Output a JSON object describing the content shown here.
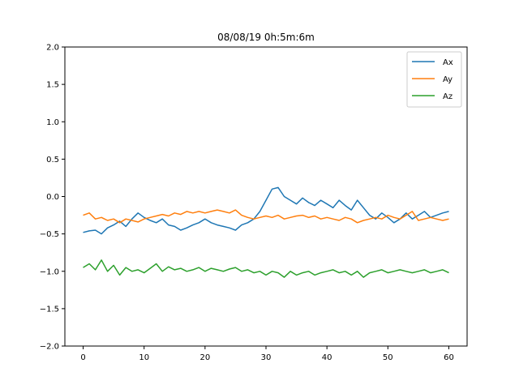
{
  "chart_data": {
    "type": "line",
    "title": "08/08/19 0h:5m:6m",
    "xlabel": "",
    "ylabel": "",
    "xlim": [
      -3,
      63
    ],
    "ylim": [
      -2.0,
      2.0
    ],
    "xticks": [
      "0",
      "10",
      "20",
      "30",
      "40",
      "50",
      "60"
    ],
    "xtick_values": [
      0,
      10,
      20,
      30,
      40,
      50,
      60
    ],
    "yticks": [
      "2.0",
      "1.5",
      "1.0",
      "0.5",
      "0.0",
      "−0.5",
      "−1.0",
      "−1.5",
      "−2.0"
    ],
    "ytick_values": [
      2.0,
      1.5,
      1.0,
      0.5,
      0.0,
      -0.5,
      -1.0,
      -1.5,
      -2.0
    ],
    "grid": false,
    "legend_position": "top-right",
    "series": [
      {
        "name": "Ax",
        "color": "#1f77b4",
        "x": [
          0,
          1,
          2,
          3,
          4,
          5,
          6,
          7,
          8,
          9,
          10,
          11,
          12,
          13,
          14,
          15,
          16,
          17,
          18,
          19,
          20,
          21,
          22,
          23,
          24,
          25,
          26,
          27,
          28,
          29,
          30,
          31,
          32,
          33,
          34,
          35,
          36,
          37,
          38,
          39,
          40,
          41,
          42,
          43,
          44,
          45,
          46,
          47,
          48,
          49,
          50,
          51,
          52,
          53,
          54,
          55,
          56,
          57,
          58,
          59,
          60
        ],
        "y": [
          -0.48,
          -0.46,
          -0.45,
          -0.5,
          -0.42,
          -0.38,
          -0.33,
          -0.4,
          -0.3,
          -0.22,
          -0.28,
          -0.32,
          -0.35,
          -0.3,
          -0.38,
          -0.4,
          -0.45,
          -0.42,
          -0.38,
          -0.35,
          -0.3,
          -0.35,
          -0.38,
          -0.4,
          -0.42,
          -0.45,
          -0.38,
          -0.35,
          -0.3,
          -0.2,
          -0.05,
          0.1,
          0.12,
          0.0,
          -0.05,
          -0.1,
          -0.02,
          -0.08,
          -0.12,
          -0.05,
          -0.1,
          -0.15,
          -0.05,
          -0.12,
          -0.18,
          -0.05,
          -0.15,
          -0.25,
          -0.3,
          -0.22,
          -0.28,
          -0.35,
          -0.3,
          -0.22,
          -0.3,
          -0.25,
          -0.2,
          -0.28,
          -0.25,
          -0.22,
          -0.2
        ]
      },
      {
        "name": "Ay",
        "color": "#ff7f0e",
        "x": [
          0,
          1,
          2,
          3,
          4,
          5,
          6,
          7,
          8,
          9,
          10,
          11,
          12,
          13,
          14,
          15,
          16,
          17,
          18,
          19,
          20,
          21,
          22,
          23,
          24,
          25,
          26,
          27,
          28,
          29,
          30,
          31,
          32,
          33,
          34,
          35,
          36,
          37,
          38,
          39,
          40,
          41,
          42,
          43,
          44,
          45,
          46,
          47,
          48,
          49,
          50,
          51,
          52,
          53,
          54,
          55,
          56,
          57,
          58,
          59,
          60
        ],
        "y": [
          -0.25,
          -0.22,
          -0.3,
          -0.28,
          -0.32,
          -0.3,
          -0.35,
          -0.3,
          -0.32,
          -0.34,
          -0.3,
          -0.28,
          -0.26,
          -0.24,
          -0.26,
          -0.22,
          -0.24,
          -0.2,
          -0.22,
          -0.2,
          -0.22,
          -0.2,
          -0.18,
          -0.2,
          -0.22,
          -0.18,
          -0.25,
          -0.28,
          -0.3,
          -0.28,
          -0.26,
          -0.28,
          -0.25,
          -0.3,
          -0.28,
          -0.26,
          -0.25,
          -0.28,
          -0.26,
          -0.3,
          -0.28,
          -0.3,
          -0.32,
          -0.28,
          -0.3,
          -0.35,
          -0.32,
          -0.3,
          -0.28,
          -0.3,
          -0.25,
          -0.28,
          -0.3,
          -0.25,
          -0.2,
          -0.32,
          -0.3,
          -0.28,
          -0.3,
          -0.32,
          -0.3
        ]
      },
      {
        "name": "Az",
        "color": "#2ca02c",
        "x": [
          0,
          1,
          2,
          3,
          4,
          5,
          6,
          7,
          8,
          9,
          10,
          11,
          12,
          13,
          14,
          15,
          16,
          17,
          18,
          19,
          20,
          21,
          22,
          23,
          24,
          25,
          26,
          27,
          28,
          29,
          30,
          31,
          32,
          33,
          34,
          35,
          36,
          37,
          38,
          39,
          40,
          41,
          42,
          43,
          44,
          45,
          46,
          47,
          48,
          49,
          50,
          51,
          52,
          53,
          54,
          55,
          56,
          57,
          58,
          59,
          60
        ],
        "y": [
          -0.95,
          -0.9,
          -0.98,
          -0.85,
          -1.0,
          -0.92,
          -1.05,
          -0.95,
          -1.0,
          -0.98,
          -1.02,
          -0.96,
          -0.9,
          -1.0,
          -0.94,
          -0.98,
          -0.96,
          -1.0,
          -0.98,
          -0.95,
          -1.0,
          -0.96,
          -0.98,
          -1.0,
          -0.97,
          -0.95,
          -1.0,
          -0.98,
          -1.02,
          -1.0,
          -1.05,
          -1.0,
          -1.02,
          -1.08,
          -1.0,
          -1.05,
          -1.02,
          -1.0,
          -1.05,
          -1.02,
          -1.0,
          -0.98,
          -1.02,
          -1.0,
          -1.05,
          -1.0,
          -1.08,
          -1.02,
          -1.0,
          -0.98,
          -1.02,
          -1.0,
          -0.98,
          -1.0,
          -1.02,
          -1.0,
          -0.98,
          -1.02,
          -1.0,
          -0.98,
          -1.02
        ]
      }
    ]
  }
}
